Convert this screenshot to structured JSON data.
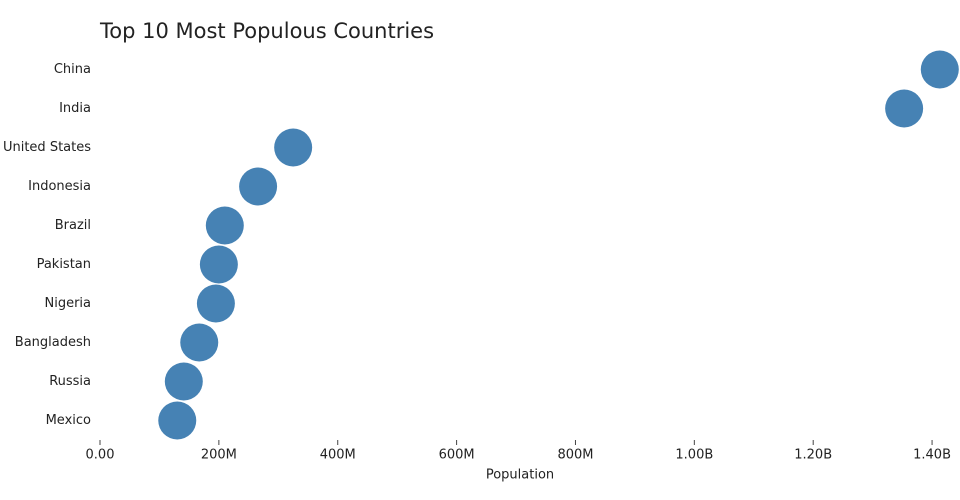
{
  "chart_data": {
    "type": "dot",
    "title": "Top 10 Most Populous Countries",
    "x_label": "Population",
    "categories": [
      "China",
      "India",
      "United States",
      "Indonesia",
      "Brazil",
      "Pakistan",
      "Nigeria",
      "Bangladesh",
      "Russia",
      "Mexico"
    ],
    "values": [
      1413000000,
      1353000000,
      325000000,
      266000000,
      210000000,
      200000000,
      195000000,
      167000000,
      141000000,
      130000000
    ],
    "color": "#4682b4",
    "xlim": [
      0,
      1447000000
    ],
    "xticks": [
      {
        "value": 0,
        "label": "0.00"
      },
      {
        "value": 200000000,
        "label": "200M"
      },
      {
        "value": 400000000,
        "label": "400M"
      },
      {
        "value": 600000000,
        "label": "600M"
      },
      {
        "value": 800000000,
        "label": "800M"
      },
      {
        "value": 1000000000,
        "label": "1.00B"
      },
      {
        "value": 1200000000,
        "label": "1.20B"
      },
      {
        "value": 1400000000,
        "label": "1.40B"
      }
    ],
    "grid": false
  }
}
